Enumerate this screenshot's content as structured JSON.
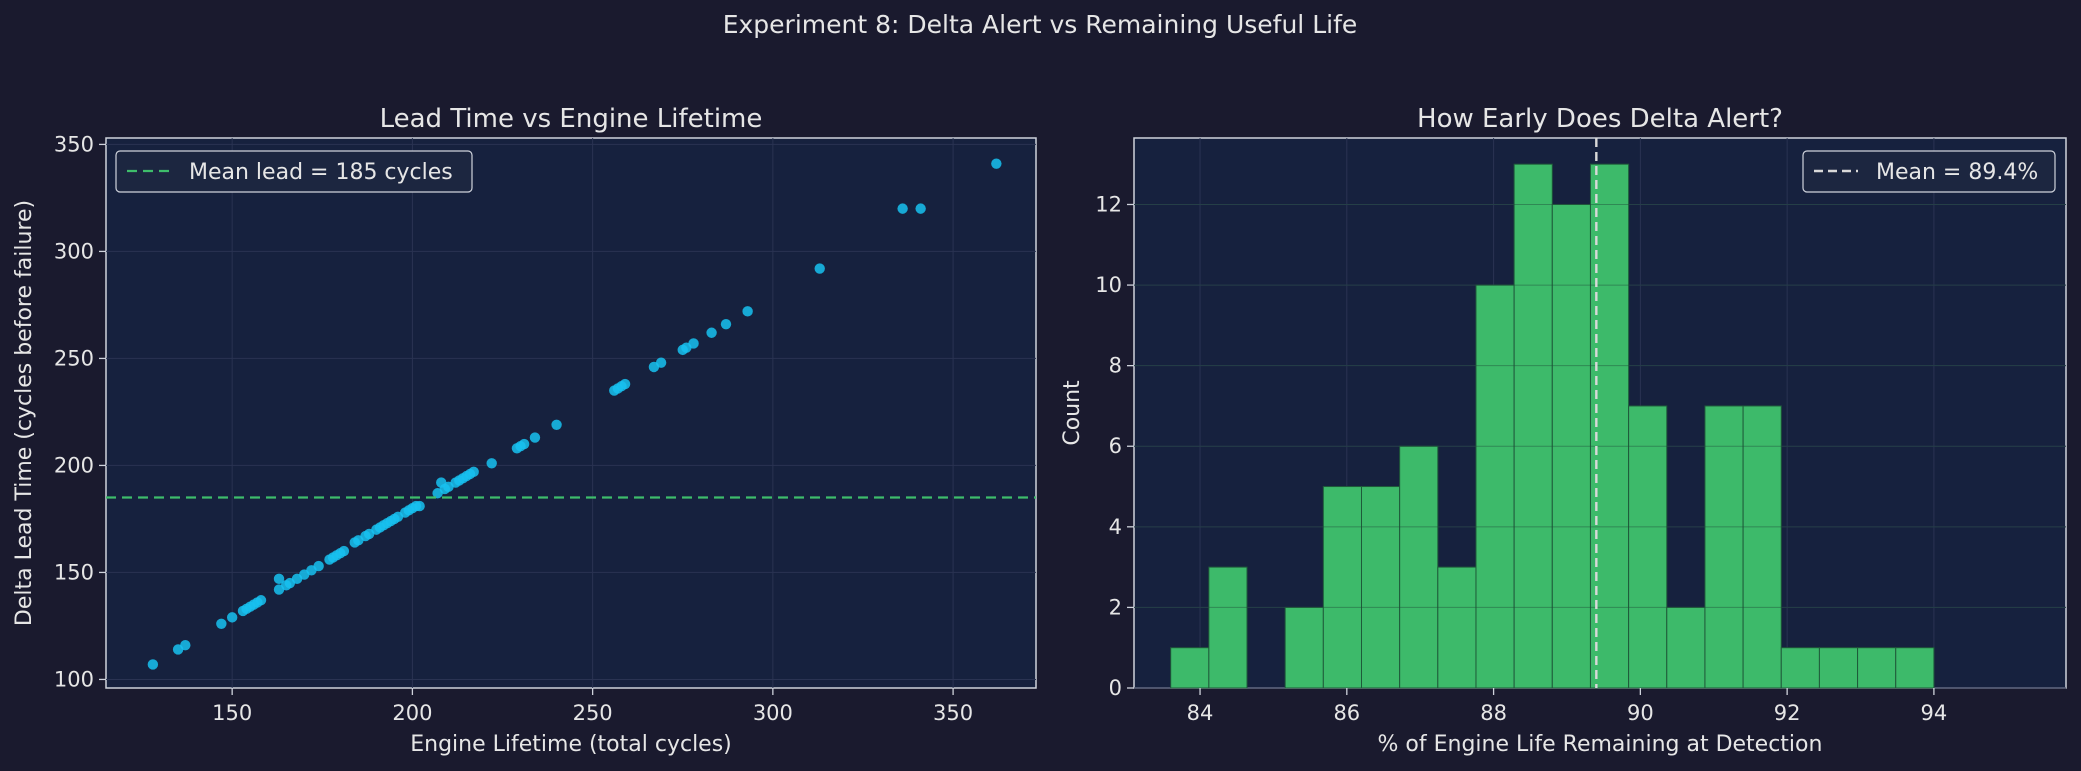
{
  "figure": {
    "suptitle": "Experiment 8: Delta Alert vs Remaining Useful Life",
    "colors": {
      "background": "#1a1a2e",
      "axes_face": "#16213e",
      "text": "#e6e6e6",
      "grid": "#2a3352",
      "scatter": "#17c1f0",
      "mean_line_left": "#3ebd6b",
      "bar_fill": "#3dba6a",
      "bar_edge": "#1f5a3a",
      "mean_line_right": "#d9d9d9"
    }
  },
  "chart_data": [
    {
      "type": "scatter",
      "title": "Lead Time vs Engine Lifetime",
      "xlabel": "Engine Lifetime (total cycles)",
      "ylabel": "Delta Lead Time (cycles before failure)",
      "xlim": [
        115,
        373
      ],
      "ylim": [
        96,
        353
      ],
      "xticks": [
        150,
        200,
        250,
        300,
        350
      ],
      "yticks": [
        100,
        150,
        200,
        250,
        300,
        350
      ],
      "grid": true,
      "legend": {
        "position": "top-left",
        "entries": [
          "Mean lead = 185 cycles"
        ]
      },
      "hline": {
        "y": 185,
        "style": "dashed"
      },
      "points": [
        [
          128,
          107
        ],
        [
          135,
          114
        ],
        [
          137,
          116
        ],
        [
          147,
          126
        ],
        [
          150,
          129
        ],
        [
          153,
          132
        ],
        [
          154,
          133
        ],
        [
          155,
          134
        ],
        [
          156,
          135
        ],
        [
          157,
          136
        ],
        [
          158,
          137
        ],
        [
          163,
          147
        ],
        [
          163,
          142
        ],
        [
          165,
          144
        ],
        [
          166,
          145
        ],
        [
          168,
          147
        ],
        [
          170,
          149
        ],
        [
          172,
          151
        ],
        [
          174,
          153
        ],
        [
          177,
          156
        ],
        [
          178,
          157
        ],
        [
          179,
          158
        ],
        [
          180,
          159
        ],
        [
          181,
          160
        ],
        [
          184,
          164
        ],
        [
          185,
          165
        ],
        [
          187,
          167
        ],
        [
          188,
          168
        ],
        [
          190,
          170
        ],
        [
          191,
          171
        ],
        [
          192,
          172
        ],
        [
          193,
          173
        ],
        [
          194,
          174
        ],
        [
          195,
          175
        ],
        [
          196,
          176
        ],
        [
          198,
          178
        ],
        [
          199,
          179
        ],
        [
          200,
          180
        ],
        [
          201,
          181
        ],
        [
          202,
          181
        ],
        [
          207,
          187
        ],
        [
          208,
          192
        ],
        [
          209,
          189
        ],
        [
          210,
          190
        ],
        [
          212,
          192
        ],
        [
          213,
          193
        ],
        [
          214,
          194
        ],
        [
          215,
          195
        ],
        [
          216,
          196
        ],
        [
          217,
          197
        ],
        [
          222,
          201
        ],
        [
          229,
          208
        ],
        [
          230,
          209
        ],
        [
          231,
          210
        ],
        [
          234,
          213
        ],
        [
          240,
          219
        ],
        [
          256,
          235
        ],
        [
          257,
          236
        ],
        [
          258,
          237
        ],
        [
          259,
          238
        ],
        [
          267,
          246
        ],
        [
          269,
          248
        ],
        [
          275,
          254
        ],
        [
          276,
          255
        ],
        [
          278,
          257
        ],
        [
          283,
          262
        ],
        [
          287,
          266
        ],
        [
          293,
          272
        ],
        [
          313,
          292
        ],
        [
          336,
          320
        ],
        [
          341,
          320
        ],
        [
          362,
          341
        ]
      ]
    },
    {
      "type": "bar",
      "title": "How Early Does Delta Alert?",
      "xlabel": "% of Engine Life Remaining at Detection",
      "ylabel": "Count",
      "xlim": [
        83.1,
        95.8
      ],
      "ylim": [
        0,
        13.65
      ],
      "xticks": [
        84,
        86,
        88,
        90,
        92,
        94
      ],
      "yticks": [
        0,
        2,
        4,
        6,
        8,
        10,
        12
      ],
      "grid": true,
      "legend": {
        "position": "top-right",
        "entries": [
          "Mean = 89.4%"
        ]
      },
      "vline": {
        "x": 89.4,
        "style": "dashed"
      },
      "bin_edges": [
        83.6,
        84.12,
        84.64,
        85.16,
        85.68,
        86.2,
        86.72,
        87.24,
        87.76,
        88.28,
        88.8,
        89.32,
        89.84,
        90.36,
        90.88,
        91.4,
        91.92,
        92.44,
        92.96,
        93.48,
        94.0,
        94.52,
        95.04
      ],
      "counts": [
        1,
        3,
        0,
        2,
        5,
        5,
        6,
        3,
        10,
        13,
        12,
        13,
        7,
        2,
        7,
        7,
        1,
        1,
        1,
        1,
        0,
        0
      ]
    }
  ]
}
